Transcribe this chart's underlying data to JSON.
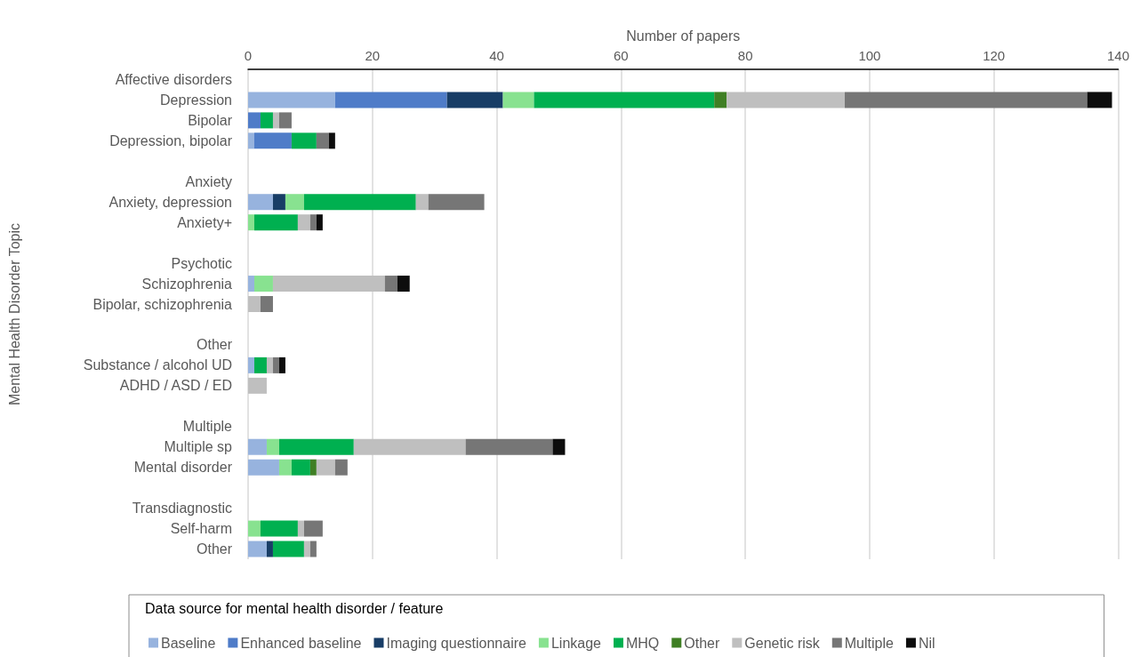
{
  "chart_data": {
    "type": "bar",
    "orientation": "horizontal",
    "stacked": true,
    "xlabel": "Number of papers",
    "ylabel": "Mental Health Disorder Topic",
    "legend_title": "Data source for mental health disorder / feature",
    "categories": [
      "Affective disorders",
      "Depression",
      "Bipolar",
      "Depression, bipolar",
      null,
      "Anxiety",
      "Anxiety, depression",
      "Anxiety+",
      null,
      "Psychotic",
      "Schizophrenia",
      "Bipolar, schizophrenia",
      null,
      "Other",
      "Substance / alcohol UD",
      "ADHD / ASD / ED",
      null,
      "Multiple",
      "Multiple sp",
      "Mental disorder",
      null,
      "Transdiagnostic",
      "Self-harm",
      "Other"
    ],
    "xlim": [
      0,
      140
    ],
    "xticks": [
      0,
      20,
      40,
      60,
      80,
      100,
      120,
      140
    ],
    "grid": "x",
    "legend": "bottom",
    "series": [
      {
        "name": "Baseline",
        "color": "#97b3de",
        "values": [
          null,
          14,
          0,
          1,
          null,
          null,
          4,
          0,
          null,
          null,
          1,
          0,
          null,
          null,
          1,
          0,
          null,
          null,
          3,
          5,
          null,
          null,
          0,
          3
        ]
      },
      {
        "name": "Enhanced baseline",
        "color": "#4f7cc8",
        "values": [
          null,
          18,
          2,
          6,
          null,
          null,
          0,
          0,
          null,
          null,
          0,
          0,
          null,
          null,
          0,
          0,
          null,
          null,
          0,
          0,
          null,
          null,
          0,
          0
        ]
      },
      {
        "name": "Imaging questionnaire",
        "color": "#183d66",
        "values": [
          null,
          9,
          0,
          0,
          null,
          null,
          2,
          0,
          null,
          null,
          0,
          0,
          null,
          null,
          0,
          0,
          null,
          null,
          0,
          0,
          null,
          null,
          0,
          1
        ]
      },
      {
        "name": "Linkage",
        "color": "#88e290",
        "values": [
          null,
          5,
          0,
          0,
          null,
          null,
          3,
          1,
          null,
          null,
          3,
          0,
          null,
          null,
          0,
          0,
          null,
          null,
          2,
          2,
          null,
          null,
          2,
          0
        ]
      },
      {
        "name": "MHQ",
        "color": "#00b050",
        "values": [
          null,
          29,
          2,
          4,
          null,
          null,
          18,
          7,
          null,
          null,
          0,
          0,
          null,
          null,
          2,
          0,
          null,
          null,
          12,
          3,
          null,
          null,
          6,
          5
        ]
      },
      {
        "name": "Other",
        "color": "#3f7f24",
        "values": [
          null,
          2,
          0,
          0,
          null,
          null,
          0,
          0,
          null,
          null,
          0,
          0,
          null,
          null,
          0,
          0,
          null,
          null,
          0,
          1,
          null,
          null,
          0,
          0
        ]
      },
      {
        "name": "Genetic risk",
        "color": "#bfbfbf",
        "values": [
          null,
          19,
          1,
          0,
          null,
          null,
          2,
          2,
          null,
          null,
          18,
          2,
          null,
          null,
          1,
          3,
          null,
          null,
          18,
          3,
          null,
          null,
          1,
          1
        ]
      },
      {
        "name": "Multiple",
        "color": "#767676",
        "values": [
          null,
          39,
          2,
          2,
          null,
          null,
          9,
          1,
          null,
          null,
          2,
          2,
          null,
          null,
          1,
          0,
          null,
          null,
          14,
          2,
          null,
          null,
          3,
          1
        ]
      },
      {
        "name": "Nil",
        "color": "#0d0d0d",
        "values": [
          null,
          4,
          0,
          1,
          null,
          null,
          0,
          1,
          null,
          null,
          2,
          0,
          null,
          null,
          1,
          0,
          null,
          null,
          2,
          0,
          null,
          null,
          0,
          0
        ]
      }
    ]
  }
}
